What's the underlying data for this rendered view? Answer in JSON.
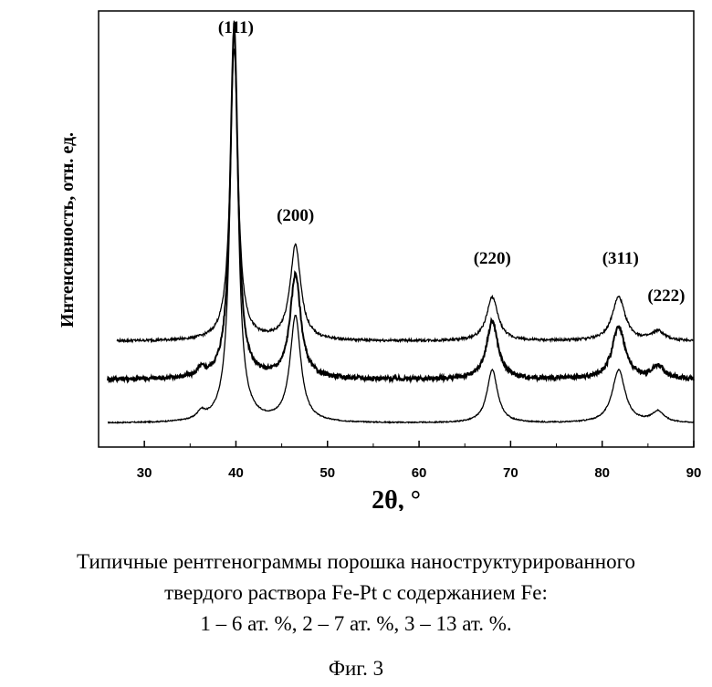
{
  "chart_data": {
    "type": "line",
    "xlabel": "2θ, °",
    "ylabel": "Интенсивность, отн. ед.",
    "xlim": [
      25,
      90
    ],
    "x_ticks": [
      30,
      40,
      50,
      60,
      70,
      80,
      90
    ],
    "y_ticks": [],
    "grid": false,
    "legend": "none",
    "peak_labels": [
      {
        "text": "(111)",
        "x": 40
      },
      {
        "text": "(200)",
        "x": 46.5
      },
      {
        "text": "(220)",
        "x": 68
      },
      {
        "text": "(311)",
        "x": 82
      },
      {
        "text": "(222)",
        "x": 86.5
      }
    ],
    "series": [
      {
        "offset": 0.13,
        "noise": 0.003,
        "start": 26,
        "peaks": [
          [
            36.2,
            0.04,
            0.5
          ],
          [
            39.8,
            2.2,
            0.5
          ],
          [
            46.5,
            0.58,
            0.7
          ],
          [
            68.0,
            0.29,
            0.7
          ],
          [
            81.8,
            0.29,
            0.85
          ],
          [
            86.1,
            0.06,
            0.8
          ]
        ]
      },
      {
        "offset": 0.37,
        "noise": 0.012,
        "start": 26,
        "peaks": [
          [
            36.2,
            0.04,
            0.5
          ],
          [
            39.8,
            1.92,
            0.5
          ],
          [
            46.5,
            0.57,
            0.7
          ],
          [
            68.0,
            0.32,
            0.75
          ],
          [
            81.8,
            0.29,
            0.85
          ],
          [
            86.1,
            0.07,
            0.8
          ]
        ]
      },
      {
        "offset": 0.58,
        "noise": 0.007,
        "start": 27,
        "peaks": [
          [
            39.8,
            1.6,
            0.5
          ],
          [
            46.5,
            0.52,
            0.7
          ],
          [
            68.0,
            0.24,
            0.75
          ],
          [
            81.8,
            0.24,
            0.85
          ],
          [
            86.1,
            0.05,
            0.8
          ]
        ]
      }
    ]
  },
  "caption": {
    "line1": "Типичные рентгенограммы порошка наноструктурированного",
    "line2": "твердого раствора Fe-Pt с содержанием Fe:",
    "line3": "1 – 6 ат. %, 2 – 7 ат. %, 3 – 13 ат.  %.",
    "line4": "Фиг. 3"
  }
}
